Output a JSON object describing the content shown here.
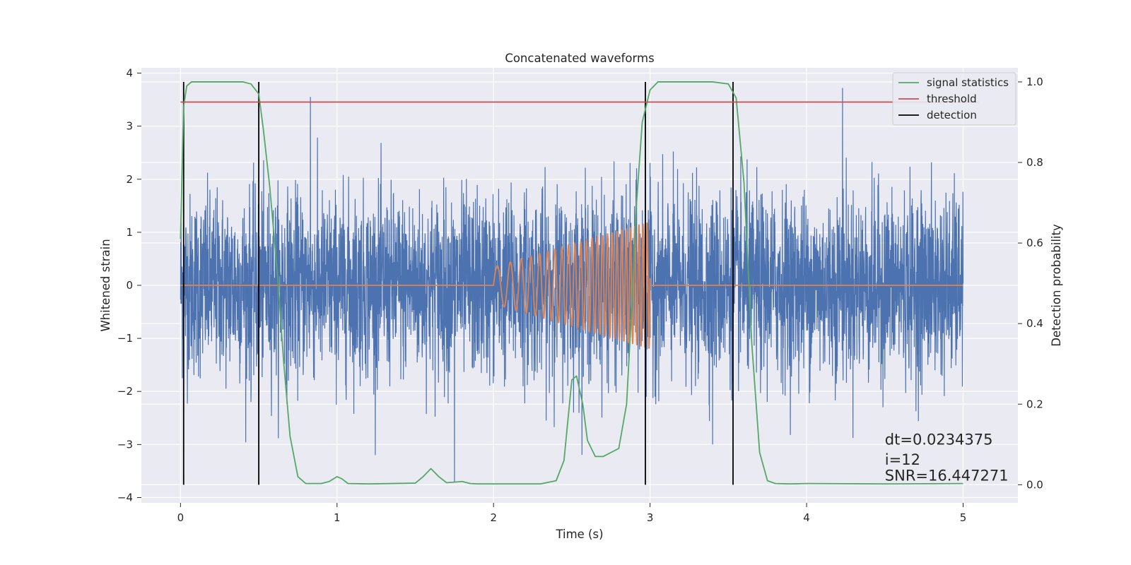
{
  "chart_data": {
    "type": "line",
    "title": "Concatenated waveforms",
    "xlabel": "Time (s)",
    "ylabel": "Whitened strain",
    "y2label": "Detection probability",
    "xlim": [
      -0.25,
      5.35
    ],
    "ylim": [
      -4.1,
      4.1
    ],
    "y2lim": [
      -0.045,
      1.035
    ],
    "xticks": [
      0,
      1,
      2,
      3,
      4,
      5
    ],
    "yticks": [
      -4,
      -3,
      -2,
      -1,
      0,
      1,
      2,
      3,
      4
    ],
    "y2ticks": [
      0.0,
      0.2,
      0.4,
      0.6,
      0.8,
      1.0
    ],
    "grid": true,
    "legend_position": "top-right",
    "series": [
      {
        "name": "",
        "axis": "left",
        "color": "#4c72b0",
        "kind": "noise",
        "x_range": [
          0,
          5
        ],
        "std": 0.85,
        "outlier_peaks": [
          [
            0.83,
            3.55
          ],
          [
            1.75,
            -3.7
          ],
          [
            2.97,
            3.5
          ],
          [
            4.23,
            3.72
          ],
          [
            0.45,
            -2.2
          ],
          [
            3.4,
            -3.0
          ]
        ]
      },
      {
        "name": "",
        "axis": "left",
        "color": "#dd8452",
        "kind": "chirp",
        "x": [
          0,
          2.0,
          3.0,
          5
        ],
        "chirp_start": 2.0,
        "chirp_end": 3.0,
        "amplitude_start": 0.35,
        "amplitude_end": 1.2,
        "freq_start": 10,
        "freq_end": 40
      },
      {
        "name": "signal statistics",
        "axis": "right",
        "color": "#55a868",
        "x": [
          0,
          0.01,
          0.02,
          0.04,
          0.07,
          0.1,
          0.2,
          0.4,
          0.45,
          0.5,
          0.53,
          0.57,
          0.62,
          0.66,
          0.7,
          0.75,
          0.8,
          0.9,
          0.95,
          1.0,
          1.03,
          1.07,
          1.2,
          1.5,
          1.55,
          1.6,
          1.65,
          1.7,
          1.8,
          1.85,
          1.9,
          2.0,
          2.3,
          2.4,
          2.45,
          2.5,
          2.53,
          2.57,
          2.6,
          2.65,
          2.7,
          2.8,
          2.85,
          2.88,
          2.91,
          2.95,
          3.0,
          3.05,
          3.1,
          3.4,
          3.5,
          3.55,
          3.6,
          3.65,
          3.7,
          3.75,
          3.8,
          3.9,
          4.0,
          4.5,
          5.0
        ],
        "y": [
          0.61,
          0.78,
          0.94,
          0.99,
          1.0,
          1.0,
          1.0,
          1.0,
          0.995,
          0.97,
          0.88,
          0.74,
          0.52,
          0.3,
          0.12,
          0.02,
          0.003,
          0.003,
          0.008,
          0.02,
          0.015,
          0.003,
          0.002,
          0.004,
          0.02,
          0.04,
          0.02,
          0.005,
          0.008,
          0.003,
          0.002,
          0.002,
          0.002,
          0.01,
          0.06,
          0.26,
          0.27,
          0.2,
          0.11,
          0.07,
          0.07,
          0.09,
          0.2,
          0.42,
          0.68,
          0.9,
          0.98,
          1.0,
          1.0,
          1.0,
          0.995,
          0.96,
          0.75,
          0.35,
          0.08,
          0.01,
          0.003,
          0.002,
          0.003,
          0.002,
          0.003
        ]
      },
      {
        "name": "threshold",
        "axis": "right",
        "color": "#c44e52",
        "x": [
          0,
          5.1
        ],
        "y": [
          0.95,
          0.95
        ]
      }
    ],
    "detections": {
      "name": "detection",
      "color": "#000000",
      "x": [
        0.02,
        0.5,
        2.97,
        3.53
      ],
      "y_range": [
        0.0,
        1.0
      ]
    },
    "annotations": [
      {
        "text": "dt=0.0234375",
        "x": 4.5,
        "y": -3.0
      },
      {
        "text": " i=12",
        "x": 4.5,
        "y": -3.38
      },
      {
        "text": "SNR=16.447271",
        "x": 4.5,
        "y": -3.68
      }
    ]
  }
}
